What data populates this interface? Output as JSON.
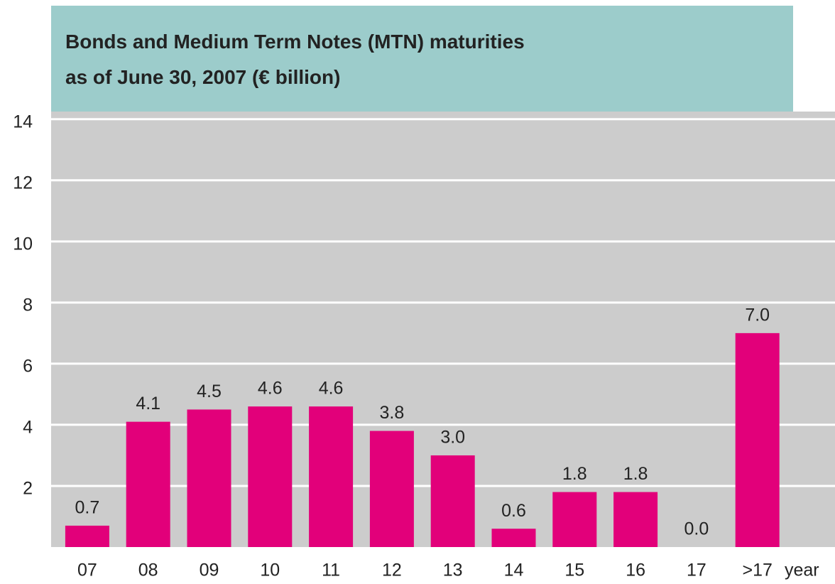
{
  "chart_data": {
    "type": "bar",
    "title_lines": [
      "Bonds and Medium Term Notes (MTN) maturities",
      "as of June 30, 2007 (€ billion)"
    ],
    "x_label": "year",
    "categories": [
      "07",
      "08",
      "09",
      "10",
      "11",
      "12",
      "13",
      "14",
      "15",
      "16",
      "17",
      ">17"
    ],
    "values": [
      0.7,
      4.1,
      4.5,
      4.6,
      4.6,
      3.8,
      3.0,
      0.6,
      1.8,
      1.8,
      0.0,
      7.0
    ],
    "value_labels": [
      "0.7",
      "4.1",
      "4.5",
      "4.6",
      "4.6",
      "3.8",
      "3.0",
      "0.6",
      "1.8",
      "1.8",
      "0.0",
      "7.0"
    ],
    "color": "#e2007a",
    "ylim": [
      0,
      14.25
    ],
    "yticks": [
      2,
      4,
      6,
      8,
      10,
      12,
      14
    ],
    "grid": true
  }
}
